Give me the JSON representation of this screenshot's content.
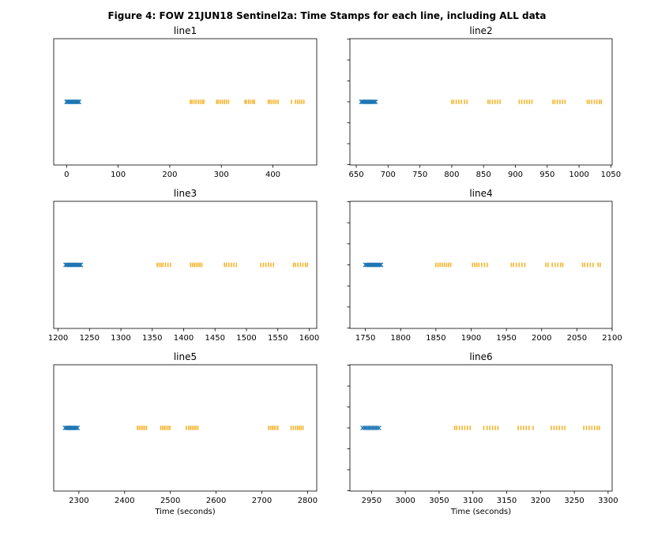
{
  "figure": {
    "title": "Figure 4: FOW 21JUN18  Sentinel2a: Time Stamps for each line, including ALL data"
  },
  "colors": {
    "blue": "#1f77b4",
    "orange": "#f5b52e"
  },
  "chart_data": [
    {
      "type": "scatter",
      "title": "line1",
      "xlabel": "",
      "xlim": [
        -25,
        485
      ],
      "ylim": [
        -1,
        1
      ],
      "xticks": [
        0,
        100,
        200,
        300,
        400
      ],
      "yticks": [],
      "series": [
        {
          "color": "blue",
          "marker": "x",
          "y": 0,
          "x": [
            0,
            2,
            4,
            6,
            8,
            10,
            12,
            14,
            16,
            18,
            20,
            22,
            24
          ]
        },
        {
          "color": "orange",
          "marker": "|",
          "y": 0,
          "x": [
            240,
            243,
            247,
            251,
            255,
            259,
            263,
            266,
            291,
            294,
            298,
            302,
            306,
            310,
            314,
            346,
            349,
            353,
            357,
            361,
            364,
            391,
            394,
            398,
            402,
            406,
            410,
            436,
            444,
            448,
            452,
            456,
            460
          ]
        }
      ]
    },
    {
      "type": "scatter",
      "title": "line2",
      "xlabel": "",
      "xlim": [
        640,
        1052
      ],
      "ylim": [
        -1,
        1
      ],
      "xticks": [
        650,
        700,
        750,
        800,
        850,
        900,
        950,
        1000,
        1050
      ],
      "yticks": [],
      "series": [
        {
          "color": "blue",
          "marker": "x",
          "y": 0,
          "x": [
            658,
            660,
            662,
            664,
            666,
            668,
            670,
            672,
            674,
            676,
            678,
            680
          ]
        },
        {
          "color": "orange",
          "marker": "|",
          "y": 0,
          "x": [
            800,
            803,
            807,
            811,
            815,
            820,
            824,
            857,
            860,
            864,
            868,
            872,
            876,
            906,
            910,
            914,
            918,
            922,
            926,
            959,
            962,
            966,
            970,
            974,
            978,
            1013,
            1016,
            1020,
            1024,
            1028,
            1032,
            1035
          ]
        }
      ]
    },
    {
      "type": "scatter",
      "title": "line3",
      "xlabel": "",
      "xlim": [
        1193,
        1612
      ],
      "ylim": [
        -1,
        1
      ],
      "xticks": [
        1200,
        1250,
        1300,
        1350,
        1400,
        1450,
        1500,
        1550,
        1600
      ],
      "yticks": [],
      "series": [
        {
          "color": "blue",
          "marker": "x",
          "y": 0,
          "x": [
            1212,
            1214,
            1216,
            1218,
            1220,
            1222,
            1224,
            1226,
            1228,
            1230,
            1232,
            1234,
            1236
          ]
        },
        {
          "color": "orange",
          "marker": "|",
          "y": 0,
          "x": [
            1358,
            1361,
            1364,
            1367,
            1371,
            1375,
            1379,
            1411,
            1414,
            1417,
            1420,
            1423,
            1426,
            1429,
            1465,
            1468,
            1472,
            1476,
            1480,
            1484,
            1523,
            1527,
            1531,
            1535,
            1539,
            1543,
            1575,
            1578,
            1582,
            1586,
            1590,
            1594,
            1597
          ]
        }
      ]
    },
    {
      "type": "scatter",
      "title": "line4",
      "xlabel": "",
      "xlim": [
        1728,
        2100
      ],
      "ylim": [
        -1,
        1
      ],
      "xticks": [
        1750,
        1800,
        1850,
        1900,
        1950,
        2000,
        2050,
        2100
      ],
      "yticks": [],
      "series": [
        {
          "color": "blue",
          "marker": "x",
          "y": 0,
          "x": [
            1750,
            1752,
            1754,
            1756,
            1758,
            1760,
            1762,
            1764,
            1766,
            1768,
            1770,
            1772
          ]
        },
        {
          "color": "orange",
          "marker": "|",
          "y": 0,
          "x": [
            1850,
            1853,
            1856,
            1859,
            1862,
            1865,
            1868,
            1871,
            1902,
            1905,
            1908,
            1911,
            1915,
            1919,
            1923,
            1957,
            1960,
            1964,
            1968,
            1972,
            1976,
            2006,
            2009,
            2015,
            2019,
            2023,
            2027,
            2030,
            2058,
            2061,
            2065,
            2069,
            2073,
            2080,
            2083
          ]
        }
      ]
    },
    {
      "type": "scatter",
      "title": "line5",
      "xlabel": "Time (seconds)",
      "xlim": [
        2245,
        2820
      ],
      "ylim": [
        -1,
        1
      ],
      "xticks": [
        2300,
        2400,
        2500,
        2600,
        2700,
        2800
      ],
      "yticks": [],
      "series": [
        {
          "color": "blue",
          "marker": "x",
          "y": 0,
          "x": [
            2270,
            2273,
            2276,
            2279,
            2282,
            2285,
            2288,
            2291,
            2294,
            2297
          ]
        },
        {
          "color": "orange",
          "marker": "|",
          "y": 0,
          "x": [
            2428,
            2432,
            2436,
            2440,
            2444,
            2448,
            2479,
            2483,
            2487,
            2491,
            2495,
            2499,
            2535,
            2540,
            2544,
            2548,
            2552,
            2556,
            2560,
            2715,
            2719,
            2723,
            2727,
            2731,
            2735,
            2764,
            2769,
            2774,
            2778,
            2782,
            2786,
            2790
          ]
        }
      ]
    },
    {
      "type": "scatter",
      "title": "line6",
      "xlabel": "Time (seconds)",
      "xlim": [
        2918,
        3306
      ],
      "ylim": [
        -1,
        1
      ],
      "xticks": [
        2950,
        3000,
        3050,
        3100,
        3150,
        3200,
        3250,
        3300
      ],
      "yticks": [],
      "series": [
        {
          "color": "blue",
          "marker": "x",
          "y": 0,
          "x": [
            2937,
            2940,
            2943,
            2946,
            2949,
            2952,
            2955,
            2958,
            2961
          ]
        },
        {
          "color": "orange",
          "marker": "|",
          "y": 0,
          "x": [
            3073,
            3076,
            3080,
            3084,
            3088,
            3092,
            3096,
            3116,
            3121,
            3125,
            3129,
            3133,
            3137,
            3167,
            3171,
            3175,
            3179,
            3183,
            3189,
            3216,
            3220,
            3224,
            3228,
            3232,
            3236,
            3264,
            3268,
            3272,
            3276,
            3280,
            3284,
            3287
          ]
        }
      ]
    }
  ]
}
